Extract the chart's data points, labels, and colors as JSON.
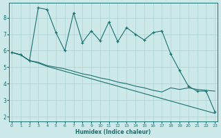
{
  "xlabel": "Humidex (Indice chaleur)",
  "ylabel": "",
  "bg_color": "#cce8e8",
  "grid_color": "#b0d4d4",
  "line_color": "#1a7070",
  "x_ticks": [
    0,
    1,
    2,
    3,
    4,
    5,
    6,
    7,
    8,
    9,
    10,
    11,
    12,
    13,
    14,
    15,
    16,
    17,
    18,
    19,
    20,
    21,
    22,
    23
  ],
  "y_ticks": [
    2,
    3,
    4,
    5,
    6,
    7,
    8
  ],
  "ylim": [
    1.7,
    8.9
  ],
  "xlim": [
    -0.3,
    23.3
  ],
  "series1_x": [
    0,
    1,
    2,
    3,
    4,
    5,
    6,
    7,
    8,
    9,
    10,
    11,
    12,
    13,
    14,
    15,
    16,
    17,
    18,
    19,
    20,
    21,
    22,
    23
  ],
  "series1_y": [
    5.9,
    5.75,
    5.4,
    8.6,
    8.5,
    7.1,
    6.0,
    8.3,
    6.5,
    7.2,
    6.6,
    7.75,
    6.55,
    7.4,
    7.0,
    6.65,
    7.1,
    7.2,
    5.8,
    4.8,
    3.85,
    3.55,
    3.55,
    2.3
  ],
  "series2_x": [
    0,
    1,
    2,
    3,
    4,
    5,
    6,
    7,
    8,
    9,
    10,
    11,
    12,
    13,
    14,
    15,
    16,
    17,
    18,
    19,
    20,
    21,
    22,
    23
  ],
  "series2_y": [
    5.9,
    5.75,
    5.4,
    5.3,
    5.1,
    5.0,
    4.9,
    4.75,
    4.6,
    4.5,
    4.35,
    4.25,
    4.1,
    4.0,
    3.85,
    3.75,
    3.6,
    3.5,
    3.75,
    3.65,
    3.75,
    3.65,
    3.6,
    3.55
  ],
  "series3_x": [
    0,
    1,
    2,
    3,
    4,
    5,
    6,
    7,
    8,
    9,
    10,
    11,
    12,
    13,
    14,
    15,
    16,
    17,
    18,
    19,
    20,
    21,
    22,
    23
  ],
  "series3_y": [
    5.9,
    5.75,
    5.4,
    5.25,
    5.05,
    4.9,
    4.75,
    4.6,
    4.45,
    4.3,
    4.15,
    4.0,
    3.85,
    3.7,
    3.55,
    3.4,
    3.25,
    3.1,
    2.95,
    2.8,
    2.65,
    2.5,
    2.35,
    2.2
  ]
}
